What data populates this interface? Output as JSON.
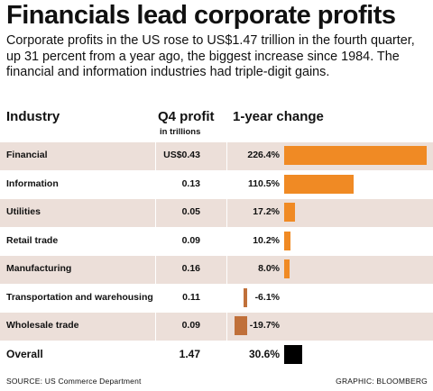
{
  "title": "Financials lead corporate profits",
  "subtitle": "Corporate profits in the US rose to US$1.47 trillion in the fourth quarter, up 31 percent from a year ago, the biggest increase since 1984. The financial and information industries had triple-digit gains.",
  "headers": {
    "industry": "Industry",
    "q4_profit": "Q4 profit",
    "q4_unit": "in trillions",
    "change": "1-year change"
  },
  "rows": [
    {
      "industry": "Financial",
      "q4": "US$0.43",
      "change_label": "226.4%"
    },
    {
      "industry": "Information",
      "q4": "0.13",
      "change_label": "110.5%"
    },
    {
      "industry": "Utilities",
      "q4": "0.05",
      "change_label": "17.2%"
    },
    {
      "industry": "Retail trade",
      "q4": "0.09",
      "change_label": "10.2%"
    },
    {
      "industry": "Manufacturing",
      "q4": "0.16",
      "change_label": "8.0%"
    },
    {
      "industry": "Transportation and warehousing",
      "q4": "0.11",
      "change_label": "-6.1%"
    },
    {
      "industry": "Wholesale trade",
      "q4": "0.09",
      "change_label": "-19.7%"
    },
    {
      "industry": "Overall",
      "q4": "1.47",
      "change_label": "30.6%"
    }
  ],
  "source": "SOURCE: US Commerce Department",
  "credit": "GRAPHIC: BLOOMBERG",
  "colors": {
    "positive": "#f08a24",
    "negative": "#c0703a",
    "overall": "#000000",
    "row_shade": "#ecdfd9"
  },
  "chart_data": {
    "type": "bar",
    "categories": [
      "Financial",
      "Information",
      "Utilities",
      "Retail trade",
      "Manufacturing",
      "Transportation and warehousing",
      "Wholesale trade",
      "Overall"
    ],
    "values": [
      226.4,
      110.5,
      17.2,
      10.2,
      8.0,
      -6.1,
      -19.7,
      30.6
    ],
    "q4_profit_trillions": [
      0.43,
      0.13,
      0.05,
      0.09,
      0.16,
      0.11,
      0.09,
      1.47
    ],
    "title": "Financials lead corporate profits",
    "xlabel": "",
    "ylabel": "1-year change",
    "ylim": [
      -19.7,
      226.4
    ],
    "orientation": "horizontal",
    "grid": false,
    "legend": "none"
  }
}
